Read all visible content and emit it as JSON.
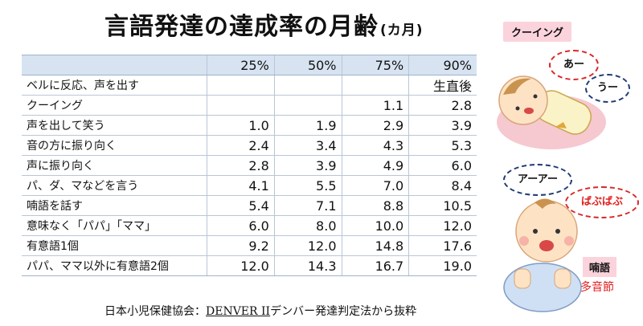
{
  "title": {
    "main": "言語発達の達成率の月齢",
    "unit": "(カ月)"
  },
  "table": {
    "headers": [
      "25%",
      "50%",
      "75%",
      "90%"
    ],
    "rows": [
      {
        "label": "ベルに反応、声を出す",
        "values": [
          "",
          "",
          "",
          "生直後"
        ]
      },
      {
        "label": "クーイング",
        "values": [
          "",
          "",
          "1.1",
          "2.8"
        ]
      },
      {
        "label": "声を出して笑う",
        "values": [
          "1.0",
          "1.9",
          "2.9",
          "3.9"
        ]
      },
      {
        "label": "音の方に振り向く",
        "values": [
          "2.4",
          "3.4",
          "4.3",
          "5.3"
        ]
      },
      {
        "label": "声に振り向く",
        "values": [
          "2.8",
          "3.9",
          "4.9",
          "6.0"
        ]
      },
      {
        "label": "パ、ダ、マなどを言う",
        "values": [
          "4.1",
          "5.5",
          "7.0",
          "8.4"
        ]
      },
      {
        "label": "喃語を話す",
        "values": [
          "5.4",
          "7.1",
          "8.8",
          "10.5"
        ]
      },
      {
        "label": "意味なく「パパ」「ママ」",
        "values": [
          "6.0",
          "8.0",
          "10.0",
          "12.0"
        ]
      },
      {
        "label": "有意語1個",
        "values": [
          "9.2",
          "12.0",
          "14.8",
          "17.6"
        ]
      },
      {
        "label": "パパ、ママ以外に有意語2個",
        "values": [
          "12.0",
          "14.3",
          "16.7",
          "19.0"
        ]
      }
    ]
  },
  "footnote": {
    "prefix": "日本小児保健協会：",
    "source": "DENVER II",
    "suffix": "デンバー発達判定法から抜粋"
  },
  "illustration": {
    "cooing_tag": "クーイング",
    "bubble_a": "あー",
    "bubble_u": "うー",
    "bubble_aa": "アーアー",
    "bubble_baba": "ばぶばぶ",
    "babble_tag": "喃語",
    "syllable_note": "多音節"
  },
  "colors": {
    "header_bg": "#d7e3f1",
    "tag_bg": "#fbd3dc",
    "accent_red": "#e02020",
    "accent_navy": "#1f3b73"
  }
}
